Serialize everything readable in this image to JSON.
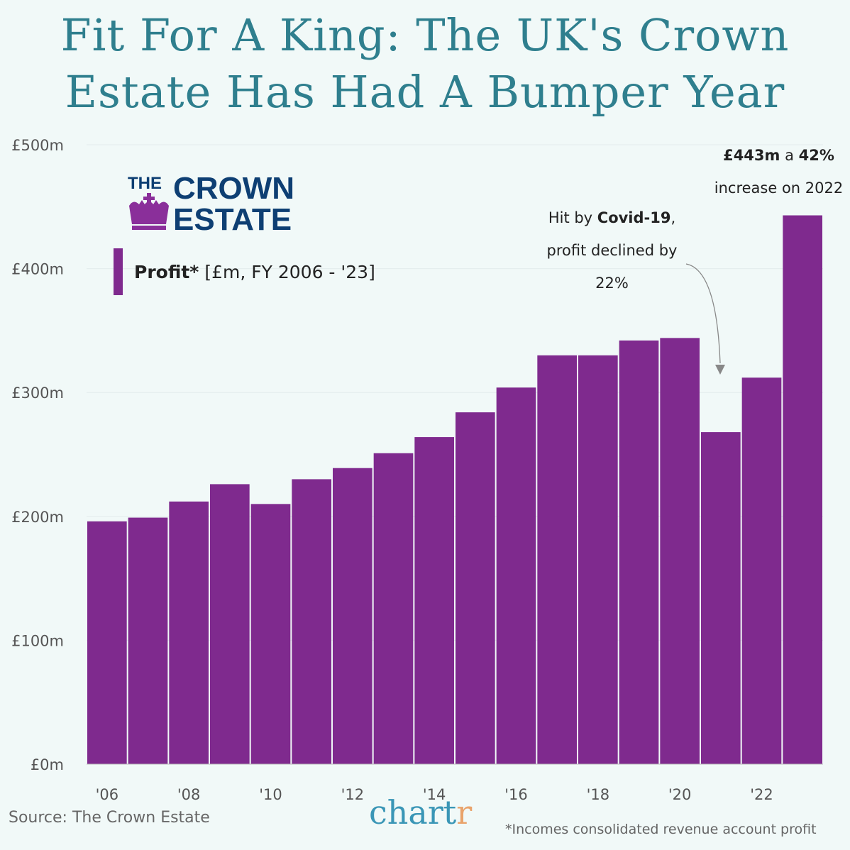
{
  "title": "Fit For A King: The UK's Crown Estate Has Had A Bumper Year",
  "logo": {
    "line1": "THE",
    "line2": "CROWN",
    "line3": "ESTATE",
    "icon": "crown-icon"
  },
  "legend": {
    "series": "Profit*",
    "unit": "[£m, FY 2006 - '23]"
  },
  "annotations": {
    "covid": {
      "pre": "Hit by ",
      "bold": "Covid-19",
      "post": ",",
      "line2": "profit declined by",
      "line3": "22%"
    },
    "latest": {
      "bold1": "£443m",
      "mid": " a ",
      "bold2": "42%",
      "line2": "increase on 2022"
    }
  },
  "source": "Source: The Crown Estate",
  "brand": {
    "main": "chart",
    "accent": "r"
  },
  "footnote": "*Incomes consolidated revenue account profit",
  "colors": {
    "bar": "#7f2a8e",
    "title": "#2f7f8e",
    "logo_text": "#0e3f73",
    "background": "#f1f9f8"
  },
  "chart_data": {
    "type": "bar",
    "title": "Fit For A King: The UK's Crown Estate Has Had A Bumper Year",
    "xlabel": "",
    "ylabel": "",
    "categories": [
      "2006",
      "2007",
      "2008",
      "2009",
      "2010",
      "2011",
      "2012",
      "2013",
      "2014",
      "2015",
      "2016",
      "2017",
      "2018",
      "2019",
      "2020",
      "2021",
      "2022",
      "2023"
    ],
    "values": [
      196,
      199,
      212,
      226,
      210,
      230,
      239,
      251,
      264,
      284,
      304,
      330,
      330,
      342,
      344,
      268,
      312,
      443
    ],
    "ylim": [
      0,
      500
    ],
    "y_ticks": [
      "£0m",
      "£100m",
      "£200m",
      "£300m",
      "£400m",
      "£500m"
    ],
    "x_ticks": [
      "'06",
      "'08",
      "'10",
      "'12",
      "'14",
      "'16",
      "'18",
      "'20",
      "'22"
    ],
    "grid": true,
    "legend": "top-left"
  }
}
